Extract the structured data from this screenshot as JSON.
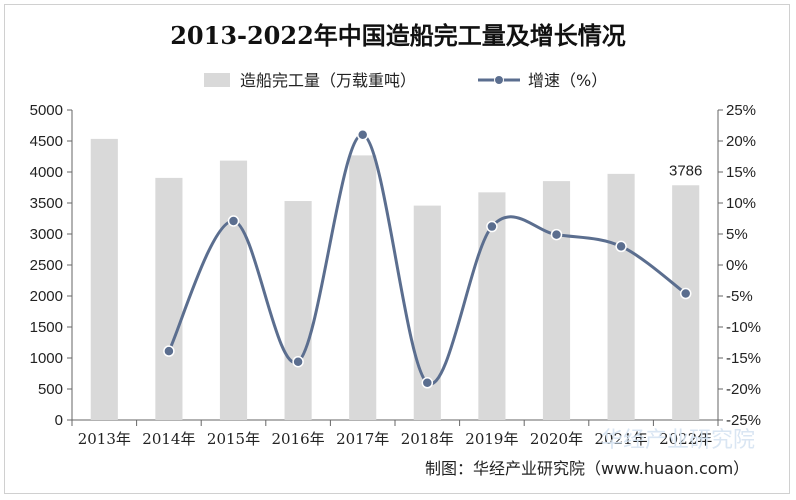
{
  "chart_data": {
    "type": "bar+line",
    "title": "2013-2022年中国造船完工量及增长情况",
    "categories": [
      "2013年",
      "2014年",
      "2015年",
      "2016年",
      "2017年",
      "2018年",
      "2019年",
      "2020年",
      "2021年",
      "2022年"
    ],
    "series": [
      {
        "name": "造船完工量（万载重吨）",
        "type": "bar",
        "axis": "left",
        "values": [
          4534,
          3905,
          4184,
          3532,
          4268,
          3458,
          3672,
          3853,
          3970,
          3786
        ],
        "color": "#d9d9d9",
        "labeled_index": 9
      },
      {
        "name": "增速（%）",
        "type": "line",
        "axis": "right",
        "values": [
          null,
          -13.9,
          7.1,
          -15.6,
          21.0,
          -19.0,
          6.2,
          4.9,
          3.0,
          -4.6
        ],
        "color": "#5b6e8f",
        "smooth": true
      }
    ],
    "y_left": {
      "min": 0,
      "max": 5000,
      "step": 500,
      "tick_labels": [
        "0",
        "500",
        "1000",
        "1500",
        "2000",
        "2500",
        "3000",
        "3500",
        "4000",
        "4500",
        "5000"
      ]
    },
    "y_right": {
      "min": -25,
      "max": 25,
      "step": 5,
      "tick_labels": [
        "-25%",
        "-20%",
        "-15%",
        "-10%",
        "-5%",
        "0%",
        "5%",
        "10%",
        "15%",
        "20%",
        "25%"
      ]
    },
    "grid": false,
    "legend_position": "top"
  },
  "bar_value_label": "3786",
  "source_label": "制图：华经产业研究院（www.huaon.com）",
  "watermark_label": "华经产业研究院"
}
